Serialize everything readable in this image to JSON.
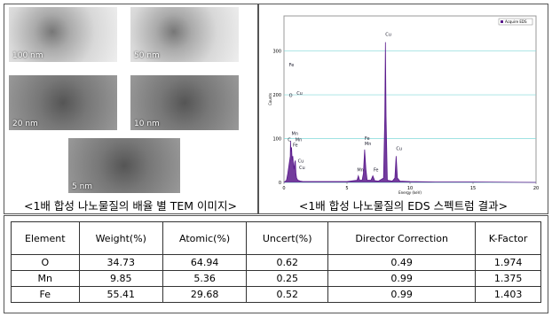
{
  "tem": {
    "images": [
      {
        "scale_label": "100 nm"
      },
      {
        "scale_label": "50 nm"
      },
      {
        "scale_label": "20 nm"
      },
      {
        "scale_label": "10 nm"
      },
      {
        "scale_label": "5 nm"
      }
    ],
    "caption": "<1배 합성 나노물질의 배율 별 TEM 이미지>"
  },
  "chart_data": {
    "type": "area",
    "caption": "<1배 합성 나노물질의 EDS 스펙트럼 결과>",
    "x_label": "Energy (keV)",
    "y_label": "Counts",
    "x": [
      0,
      0.2,
      0.3,
      0.4,
      0.5,
      0.52,
      0.55,
      0.6,
      0.65,
      0.7,
      0.75,
      0.8,
      0.85,
      0.9,
      0.95,
      1.0,
      1.1,
      1.3,
      1.5,
      2,
      3,
      4,
      5,
      5.8,
      5.9,
      6.0,
      6.2,
      6.3,
      6.4,
      6.5,
      6.6,
      6.9,
      7.05,
      7.2,
      7.5,
      7.9,
      8.0,
      8.05,
      8.1,
      8.2,
      8.6,
      8.8,
      8.9,
      9.0,
      9.2,
      10,
      12,
      15,
      20
    ],
    "series": [
      {
        "name": "Acquire EDS",
        "color": "#5a1a8c",
        "values": [
          0,
          5,
          20,
          40,
          60,
          95,
          70,
          80,
          50,
          60,
          40,
          30,
          45,
          50,
          20,
          10,
          5,
          3,
          2,
          2,
          2,
          2,
          2,
          5,
          15,
          5,
          5,
          20,
          75,
          30,
          5,
          5,
          15,
          4,
          3,
          10,
          150,
          320,
          150,
          5,
          3,
          10,
          60,
          10,
          3,
          2,
          1,
          1,
          0
        ]
      }
    ],
    "annotations": [
      {
        "text": "Fe",
        "x": 0.4,
        "y": 265
      },
      {
        "text": "O",
        "x": 0.4,
        "y": 195
      },
      {
        "text": "Cu",
        "x": 1.0,
        "y": 200
      },
      {
        "text": "Mn",
        "x": 0.6,
        "y": 108
      },
      {
        "text": "C",
        "x": 0.3,
        "y": 94
      },
      {
        "text": "Mn",
        "x": 0.9,
        "y": 94
      },
      {
        "text": "Fe",
        "x": 0.7,
        "y": 82
      },
      {
        "text": "Cu",
        "x": 1.1,
        "y": 45
      },
      {
        "text": "Cu",
        "x": 1.2,
        "y": 30
      },
      {
        "text": "Fe",
        "x": 6.4,
        "y": 97
      },
      {
        "text": "Mn",
        "x": 6.4,
        "y": 85
      },
      {
        "text": "Mn",
        "x": 5.8,
        "y": 25
      },
      {
        "text": "Fe",
        "x": 7.1,
        "y": 25
      },
      {
        "text": "Cu",
        "x": 8.05,
        "y": 335
      },
      {
        "text": "Cu",
        "x": 8.9,
        "y": 74
      }
    ],
    "xlim": [
      0,
      20
    ],
    "xticks": [
      0,
      5,
      10,
      15,
      20
    ],
    "ylim": [
      0,
      380
    ],
    "yticks": [
      0,
      100,
      200,
      300
    ],
    "grid": true,
    "legend": "top-right"
  },
  "table": {
    "header": [
      "Element",
      "Weight(%)",
      "Atomic(%)",
      "Uncert(%)",
      "Director Correction",
      "K-Factor"
    ],
    "rows": [
      [
        "O",
        34.73,
        64.94,
        0.62,
        0.49,
        1.974
      ],
      [
        "Mn",
        9.85,
        5.36,
        0.25,
        0.99,
        1.375
      ],
      [
        "Fe",
        55.41,
        29.68,
        0.52,
        0.99,
        1.403
      ]
    ]
  }
}
